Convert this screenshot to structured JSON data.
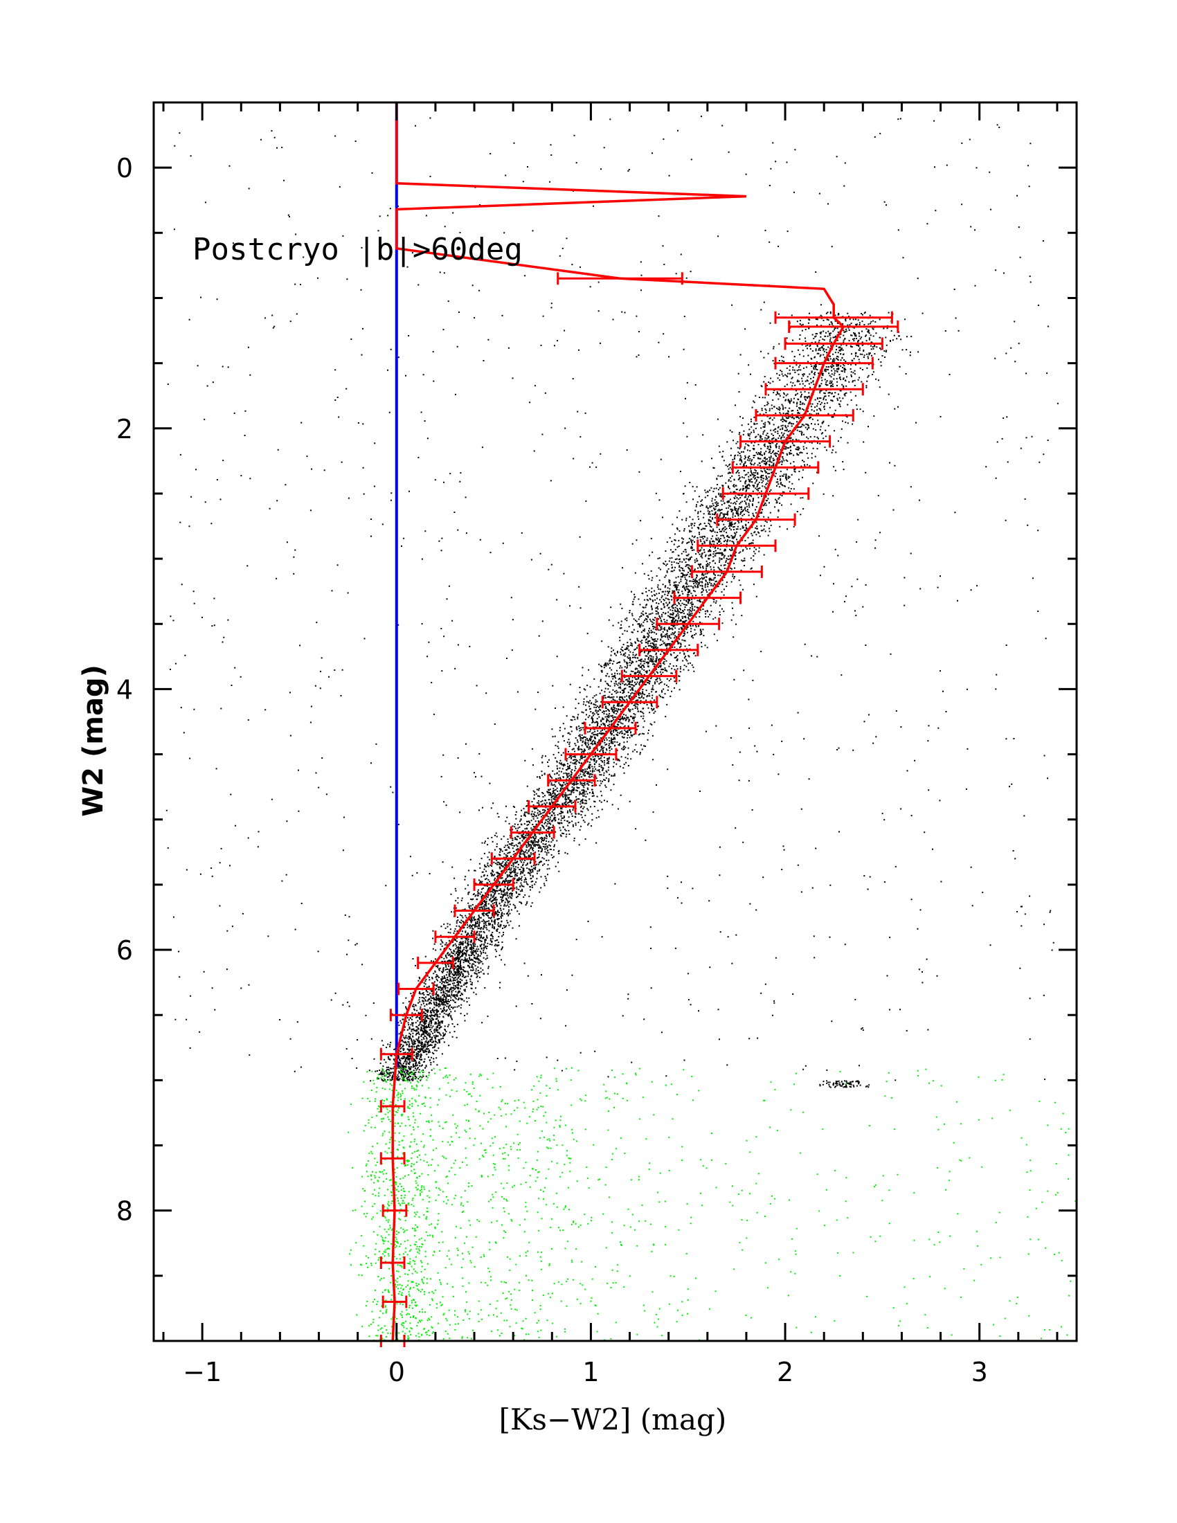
{
  "chart_data": {
    "type": "scatter",
    "title": "",
    "annotation": "Postcryo |b|>60deg",
    "xlabel": "[Ks−W2] (mag)",
    "ylabel": "W2 (mag)",
    "xlim": [
      -1.25,
      3.5
    ],
    "ylim": [
      9.0,
      -0.5
    ],
    "y_inverted": true,
    "x_ticks": [
      -1,
      0,
      1,
      2,
      3
    ],
    "x_tick_labels": [
      "−1",
      "0",
      "1",
      "2",
      "3"
    ],
    "y_ticks": [
      0,
      2,
      4,
      6,
      8
    ],
    "y_tick_labels": [
      "0",
      "2",
      "4",
      "6",
      "8"
    ],
    "grid": false,
    "colors": {
      "black_points": "#000000",
      "faint_points": "#00ee00",
      "median_line": "#ff0000",
      "reference_line": "#0000ff"
    },
    "series": [
      {
        "kind": "reference_line",
        "color": "#0000ff",
        "x": [
          0,
          0
        ],
        "y": [
          -0.5,
          6.9
        ]
      },
      {
        "kind": "median_with_errorbars",
        "color": "#ff0000",
        "x": [
          0.0,
          0.0,
          1.8,
          0.0,
          0.0,
          0.0,
          1.15,
          2.2,
          2.25,
          2.25,
          2.3,
          2.25,
          2.2,
          2.15,
          2.1,
          2.0,
          1.95,
          1.9,
          1.85,
          1.75,
          1.7,
          1.6,
          1.5,
          1.4,
          1.3,
          1.2,
          1.1,
          1.0,
          0.9,
          0.8,
          0.7,
          0.6,
          0.5,
          0.4,
          0.3,
          0.2,
          0.1,
          0.05,
          0.0,
          -0.02,
          -0.02,
          -0.01,
          -0.02,
          -0.01,
          -0.02
        ],
        "y": [
          -0.5,
          0.12,
          0.22,
          0.32,
          0.62,
          0.62,
          0.85,
          0.93,
          1.05,
          1.15,
          1.22,
          1.35,
          1.5,
          1.7,
          1.9,
          2.1,
          2.3,
          2.5,
          2.7,
          2.9,
          3.1,
          3.3,
          3.5,
          3.7,
          3.9,
          4.1,
          4.3,
          4.5,
          4.7,
          4.9,
          5.1,
          5.3,
          5.5,
          5.7,
          5.9,
          6.1,
          6.3,
          6.5,
          6.8,
          7.2,
          7.6,
          8.0,
          8.4,
          8.7,
          9.0
        ],
        "xerr": [
          0,
          0,
          0.0,
          0,
          0,
          0,
          0.32,
          0.0,
          0.0,
          0.3,
          0.28,
          0.25,
          0.25,
          0.25,
          0.25,
          0.23,
          0.22,
          0.22,
          0.2,
          0.2,
          0.18,
          0.17,
          0.16,
          0.15,
          0.14,
          0.14,
          0.13,
          0.13,
          0.12,
          0.12,
          0.11,
          0.11,
          0.1,
          0.1,
          0.1,
          0.09,
          0.09,
          0.08,
          0.08,
          0.06,
          0.06,
          0.06,
          0.06,
          0.06,
          0.06
        ]
      }
    ],
    "point_clouds": [
      {
        "name": "",
        "color": "#000000",
        "description_locus": "W2 from 1.0 to 7.0; color rises from ~0 at W2=7 to ~2.3 at W2=1.2",
        "locus_x": [
          0.0,
          0.5,
          1.0,
          1.5,
          2.0,
          2.3
        ],
        "locus_y": [
          7.0,
          5.6,
          4.5,
          3.2,
          2.0,
          1.3
        ]
      },
      {
        "name": "",
        "color": "#00ee00",
        "description_locus": "W2 from 6.9 to 9.0 centred at color 0, diffuse tail to the right",
        "locus_x": [
          0.0,
          0.0,
          0.0
        ],
        "locus_y": [
          7.0,
          8.0,
          9.0
        ]
      }
    ]
  }
}
